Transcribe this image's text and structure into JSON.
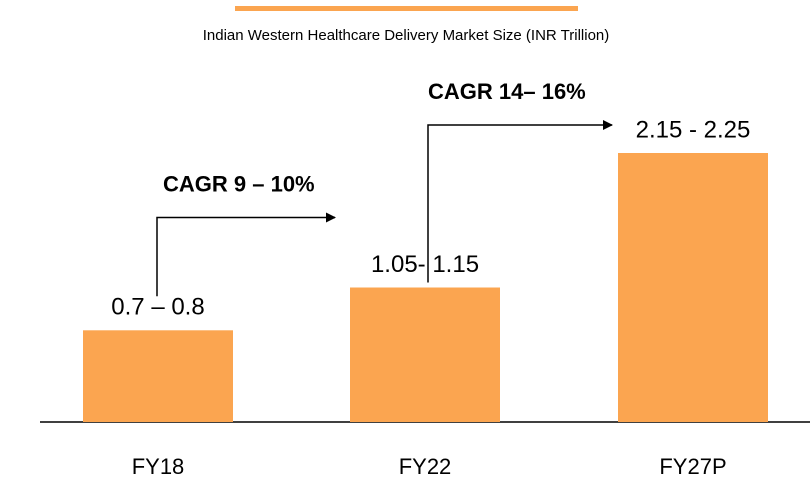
{
  "chart_data": {
    "type": "bar",
    "title": "Indian Western Healthcare Delivery Market Size (INR Trillion)",
    "categories": [
      "FY18",
      "FY22",
      "FY27P"
    ],
    "values": [
      0.75,
      1.1,
      2.2
    ],
    "value_labels": [
      "0.7 – 0.8",
      "1.05- 1.15",
      "2.15 - 2.25"
    ],
    "color": "#fba550",
    "annotations": [
      "CAGR 9 – 10%",
      "CAGR 14– 16%"
    ]
  }
}
